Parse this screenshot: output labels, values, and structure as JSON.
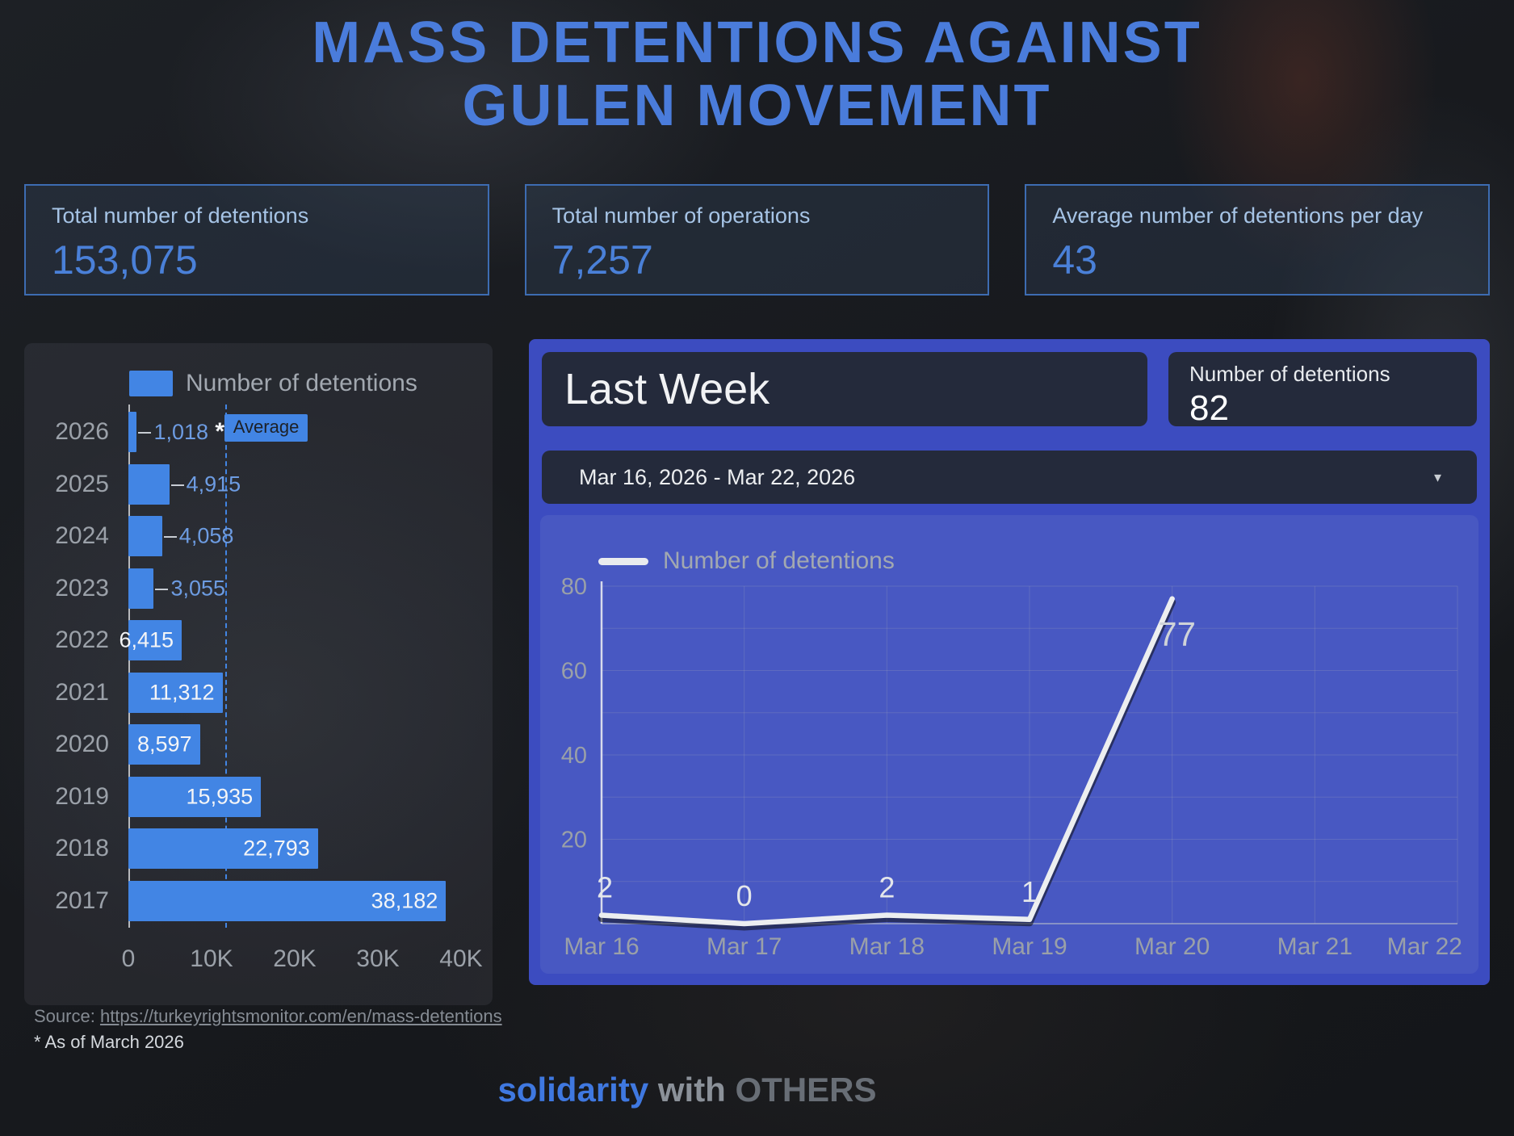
{
  "title": {
    "line1": "MASS DETENTIONS AGAINST",
    "line2": "GULEN MOVEMENT"
  },
  "stats": [
    {
      "label": "Total number of detentions",
      "value": "153,075"
    },
    {
      "label": "Total number of operations",
      "value": "7,257"
    },
    {
      "label": "Average number of detentions per day",
      "value": "43"
    }
  ],
  "last_week": {
    "title": "Last Week",
    "detentions_label": "Number of detentions",
    "detentions_value": "82",
    "date_range": "Mar 16, 2026 - Mar 22, 2026"
  },
  "chart_data": [
    {
      "type": "bar",
      "orientation": "horizontal",
      "legend": "Number of detentions",
      "categories": [
        "2026",
        "2025",
        "2024",
        "2023",
        "2022",
        "2021",
        "2020",
        "2019",
        "2018",
        "2017"
      ],
      "values": [
        1018,
        4915,
        4058,
        3055,
        6415,
        11312,
        8597,
        15935,
        22793,
        38182
      ],
      "value_labels": [
        "1,018",
        "4,915",
        "4,058",
        "3,055",
        "6,415",
        "11,312",
        "8,597",
        "15,935",
        "22,793",
        "38,182"
      ],
      "footnote_category": "2026",
      "footnote_marker": "*",
      "average": 11628,
      "average_label": "Average",
      "xlim": [
        0,
        40000
      ],
      "x_ticks": [
        "0",
        "10K",
        "20K",
        "30K",
        "40K"
      ],
      "grid": false,
      "legend_position": "top"
    },
    {
      "type": "line",
      "legend": "Number of detentions",
      "x": [
        "Mar 16",
        "Mar 17",
        "Mar 18",
        "Mar 19",
        "Mar 20",
        "Mar 21",
        "Mar 22"
      ],
      "values": [
        2,
        0,
        2,
        1,
        77,
        null,
        null
      ],
      "value_labels": [
        "2",
        "0",
        "2",
        "1",
        "77",
        "",
        ""
      ],
      "ylim": [
        0,
        80
      ],
      "y_ticks": [
        20,
        40,
        60,
        80
      ],
      "grid": true,
      "legend_position": "top"
    }
  ],
  "source": {
    "prefix": "Source:",
    "url": "https://turkeyrightsmonitor.com/en/mass-detentions",
    "footnote": "* As of March 2026"
  },
  "footer": {
    "part1": "solidarity",
    "part2": "with",
    "part3": "OTHERS"
  },
  "colors": {
    "accent_bar_blue": "#4285E4",
    "title_blue": "#4A7CDB",
    "stat_value_blue": "#4A80D8",
    "stat_label_blue": "#A6C4E6",
    "panel_frame_blue": "#3C4CC0",
    "line_color": "#ECEEF0",
    "muted_text": "#9BA1A9"
  }
}
